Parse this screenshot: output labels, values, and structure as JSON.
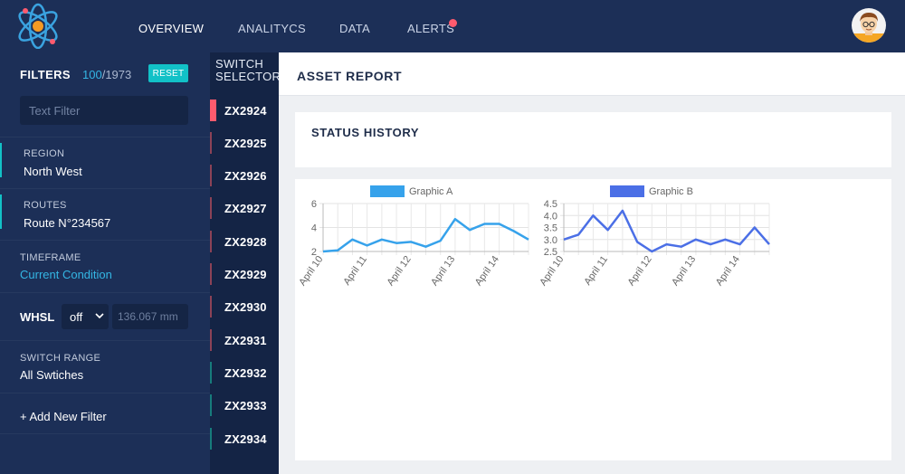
{
  "nav": {
    "items": [
      {
        "label": "OVERVIEW",
        "active": true
      },
      {
        "label": "ANALITYCS",
        "active": false
      },
      {
        "label": "DATA",
        "active": false
      },
      {
        "label": "ALERTS",
        "active": false
      }
    ],
    "alert_dot_color": "#ff5b6e"
  },
  "filters": {
    "title": "FILTERS",
    "shown_count": "100",
    "total_count": "/1973",
    "reset_label": "RESET",
    "text_filter_placeholder": "Text Filter",
    "region": {
      "label": "REGION",
      "value": "North West"
    },
    "routes": {
      "label": "ROUTES",
      "value": "Route N°234567"
    },
    "timeframe": {
      "label": "TIMEFRAME",
      "value": "Current Condition"
    },
    "whsl": {
      "label": "WHSL",
      "selected": "off",
      "placeholder": "136.067 mm"
    },
    "switch_range": {
      "label": "SWITCH RANGE",
      "value": "All Swtiches"
    },
    "add_filter_label": "+ Add New Filter"
  },
  "switch_selector": {
    "title_line1": "SWITCH",
    "title_line2": "SELECTOR",
    "items": [
      {
        "label": "ZX2924",
        "color": "#ff5b6e",
        "selected": true
      },
      {
        "label": "ZX2925",
        "color": "#8c4257",
        "selected": false
      },
      {
        "label": "ZX2926",
        "color": "#8c4257",
        "selected": false
      },
      {
        "label": "ZX2927",
        "color": "#8c4257",
        "selected": false
      },
      {
        "label": "ZX2928",
        "color": "#8c4257",
        "selected": false
      },
      {
        "label": "ZX2929",
        "color": "#8c4257",
        "selected": false
      },
      {
        "label": "ZX2930",
        "color": "#8c4257",
        "selected": false
      },
      {
        "label": "ZX2931",
        "color": "#8c4257",
        "selected": false
      },
      {
        "label": "ZX2932",
        "color": "#177c7c",
        "selected": false
      },
      {
        "label": "ZX2933",
        "color": "#177c7c",
        "selected": false
      },
      {
        "label": "ZX2934",
        "color": "#177c7c",
        "selected": false
      }
    ]
  },
  "main": {
    "report_title": "ASSET REPORT",
    "status_title": "STATUS HISTORY"
  },
  "chart_data": [
    {
      "type": "line",
      "series": [
        {
          "name": "Graphic A",
          "color": "#36a2eb",
          "values": [
            2.0,
            2.1,
            3.0,
            2.5,
            3.0,
            2.7,
            2.8,
            2.4,
            2.9,
            4.7,
            3.8,
            4.3,
            4.3,
            3.7,
            3.0
          ]
        }
      ],
      "x_tick_labels": [
        "April 10",
        "April 11",
        "April 12",
        "April 13",
        "April 14"
      ],
      "y_ticks": [
        2,
        4,
        6
      ],
      "ylim": [
        2,
        6
      ],
      "legend": "top"
    },
    {
      "type": "line",
      "series": [
        {
          "name": "Graphic B",
          "color": "#4b6fe6",
          "values": [
            3.0,
            3.2,
            4.0,
            3.4,
            4.2,
            2.9,
            2.5,
            2.8,
            2.7,
            3.0,
            2.8,
            3.0,
            2.8,
            3.5,
            2.8
          ]
        }
      ],
      "x_tick_labels": [
        "April 10",
        "April 11",
        "April 12",
        "April 13",
        "April 14"
      ],
      "y_ticks": [
        2.5,
        3.0,
        3.5,
        4.0,
        4.5
      ],
      "ylim": [
        2.5,
        4.5
      ],
      "legend": "top"
    }
  ]
}
